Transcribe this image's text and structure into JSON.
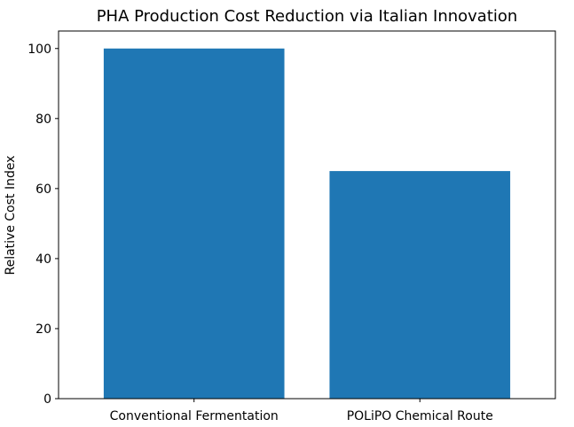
{
  "chart_data": {
    "type": "bar",
    "title": "PHA Production Cost Reduction via Italian Innovation",
    "xlabel": "",
    "ylabel": "Relative Cost Index",
    "categories": [
      "Conventional Fermentation",
      "POLiPO Chemical Route"
    ],
    "values": [
      100,
      65
    ],
    "ylim": [
      0,
      105
    ],
    "yticks": [
      0,
      20,
      40,
      60,
      80,
      100
    ],
    "grid": false,
    "bar_color": "#1f77b4"
  }
}
